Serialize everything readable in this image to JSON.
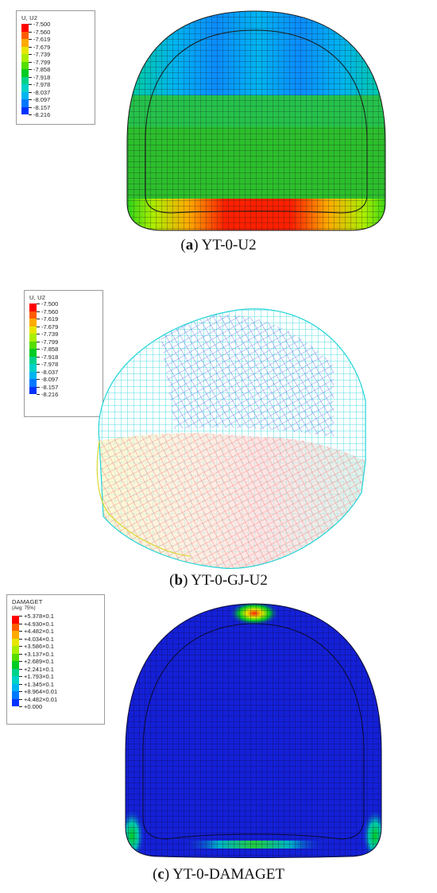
{
  "panels": [
    {
      "legend_title": "U, U2",
      "legend_subtitle": "",
      "legend_values": [
        "-7.500",
        "-7.560",
        "-7.619",
        "-7.679",
        "-7.739",
        "-7.799",
        "-7.858",
        "-7.918",
        "-7.978",
        "-8.037",
        "-8.097",
        "-8.157",
        "-8.216"
      ],
      "caption_letter": "a",
      "caption_text": " YT-0-U2"
    },
    {
      "legend_title": "U, U2",
      "legend_subtitle": "",
      "legend_values": [
        "-7.500",
        "-7.560",
        "-7.619",
        "-7.679",
        "-7.739",
        "-7.799",
        "-7.858",
        "-7.918",
        "-7.978",
        "-8.037",
        "-8.097",
        "-8.157",
        "-8.216"
      ],
      "caption_letter": "b",
      "caption_text": " YT-0-GJ-U2"
    },
    {
      "legend_title": "DAMAGET",
      "legend_subtitle": "(Avg: 75%)",
      "legend_values": [
        "+5.378×0.1",
        "+4.930×0.1",
        "+4.482×0.1",
        "+4.034×0.1",
        "+3.586×0.1",
        "+3.137×0.1",
        "+2.689×0.1",
        "+2.241×0.1",
        "+1.793×0.1",
        "+1.345×0.1",
        "+8.964×0.01",
        "+4.482×0.01",
        "+0.000"
      ],
      "caption_letter": "c",
      "caption_text": " YT-0-DAMAGET"
    }
  ],
  "colors": {
    "contour": [
      "#ff0000",
      "#ff5a00",
      "#ffaa00",
      "#e6e600",
      "#aaee00",
      "#55dd00",
      "#00cc22",
      "#00d28a",
      "#00d2c8",
      "#00b4f0",
      "#0078ff",
      "#0032ff",
      "#0000e6"
    ],
    "mesh_line": "#1a1a1a",
    "wire_cyan": "#22d4d8",
    "wire_blue": "#4a62e0"
  }
}
